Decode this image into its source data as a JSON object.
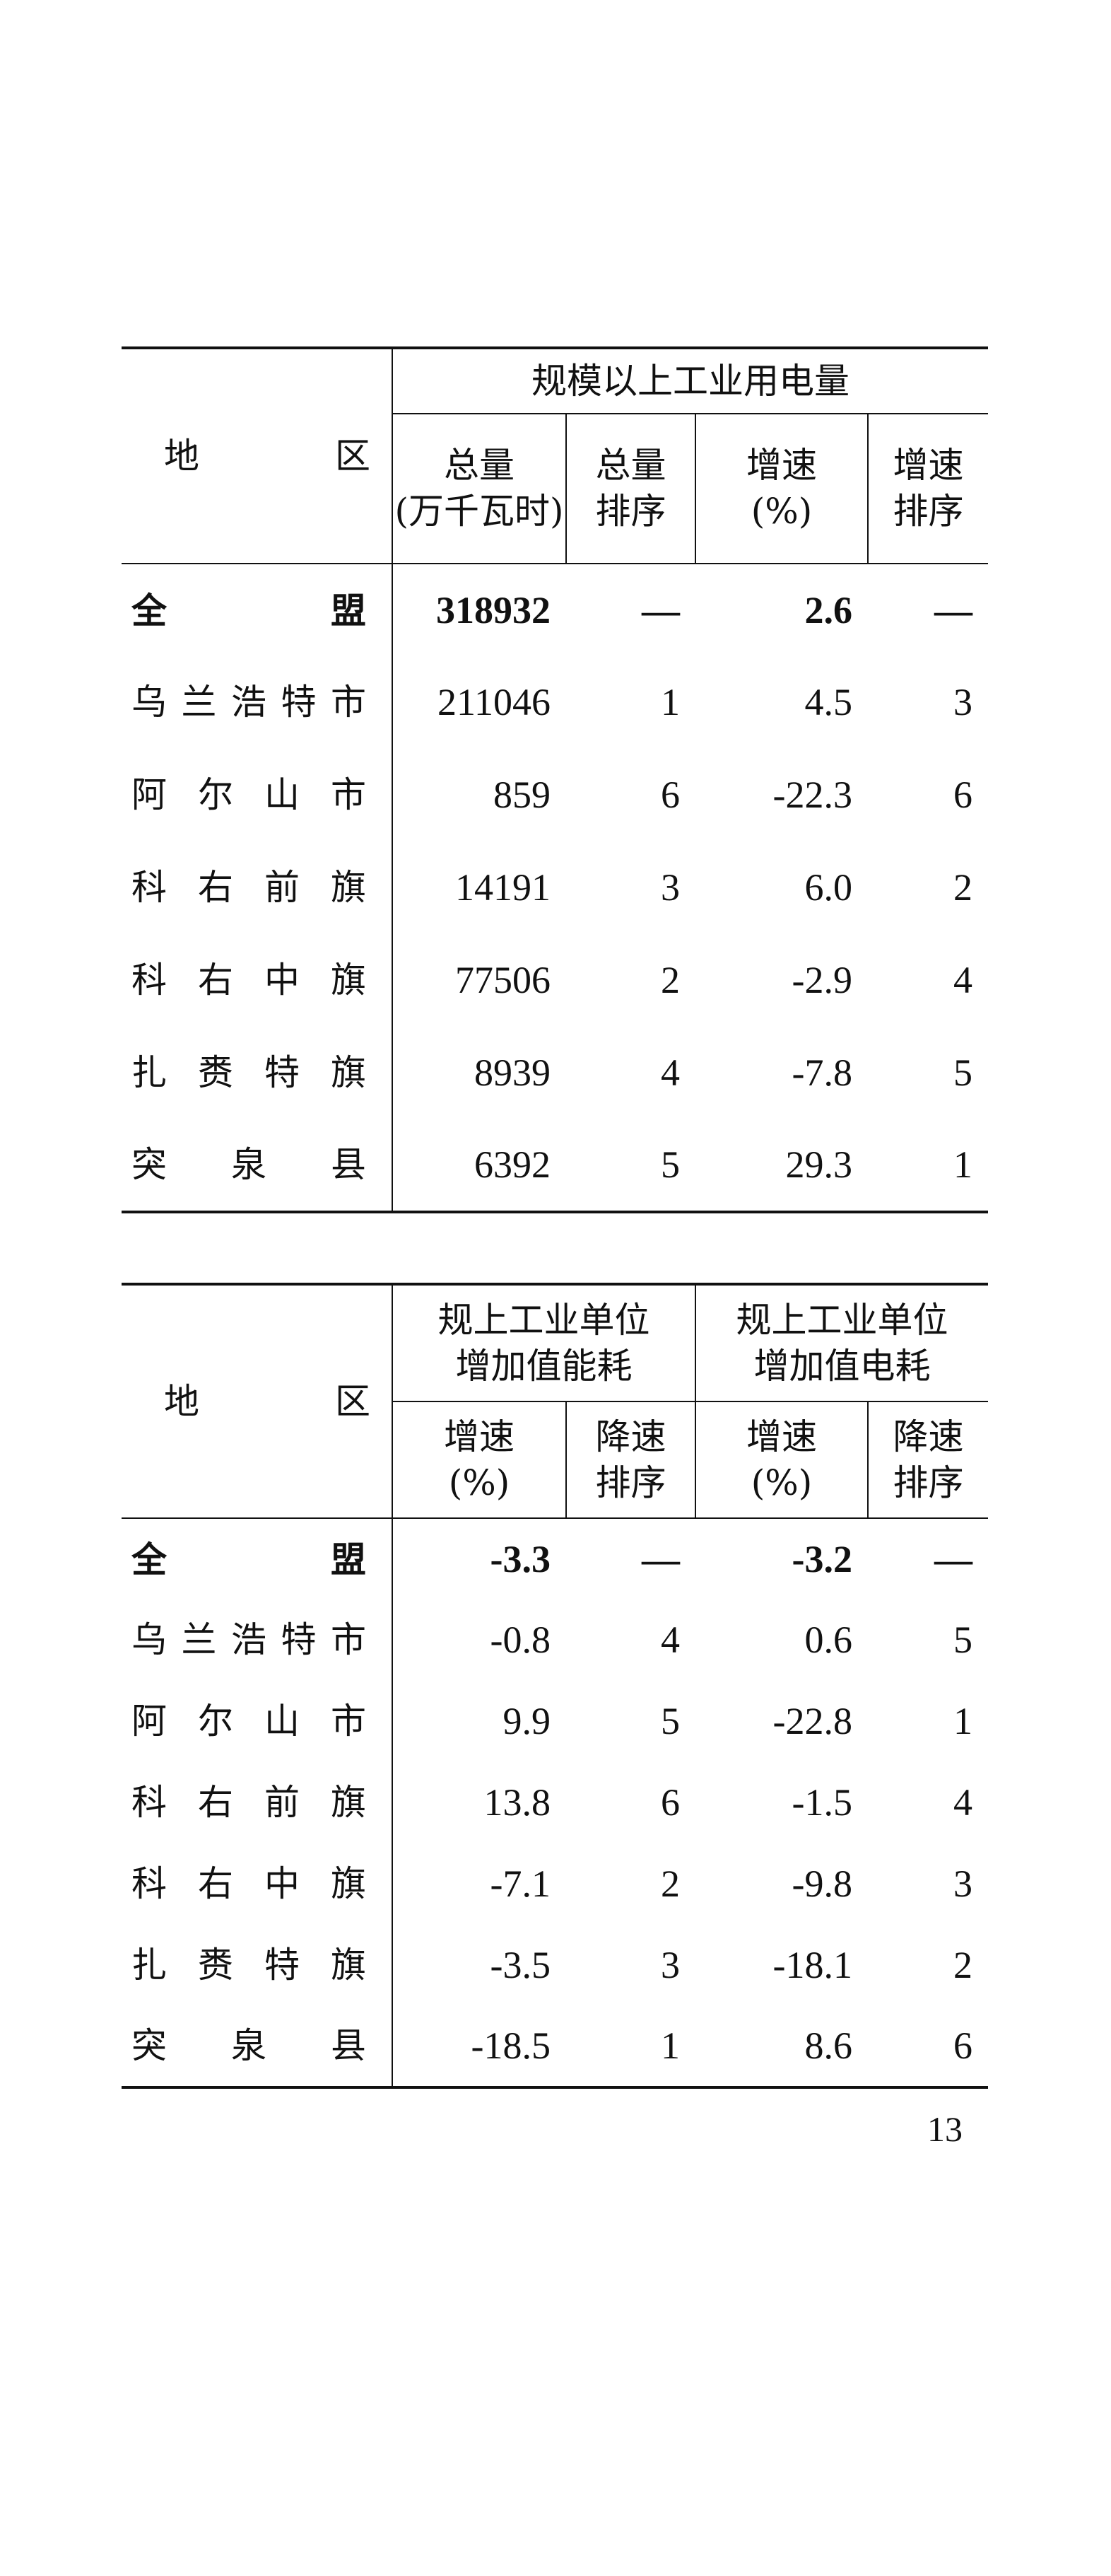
{
  "table1": {
    "region_header": [
      "地",
      "区"
    ],
    "group_header": "规模以上工业用电量",
    "columns": [
      [
        "总量",
        "(万千瓦时)"
      ],
      [
        "总量",
        "排序"
      ],
      [
        "增速",
        "(%)"
      ],
      [
        "增速",
        "排序"
      ]
    ],
    "rows": [
      {
        "region": [
          "全",
          "盟"
        ],
        "values": [
          "318932",
          "—",
          "2.6",
          "—"
        ],
        "bold": true
      },
      {
        "region": [
          "乌",
          "兰",
          "浩",
          "特",
          "市"
        ],
        "values": [
          "211046",
          "1",
          "4.5",
          "3"
        ]
      },
      {
        "region": [
          "阿",
          "尔",
          "山",
          "市"
        ],
        "values": [
          "859",
          "6",
          "-22.3",
          "6"
        ]
      },
      {
        "region": [
          "科",
          "右",
          "前",
          "旗"
        ],
        "values": [
          "14191",
          "3",
          "6.0",
          "2"
        ]
      },
      {
        "region": [
          "科",
          "右",
          "中",
          "旗"
        ],
        "values": [
          "77506",
          "2",
          "-2.9",
          "4"
        ]
      },
      {
        "region": [
          "扎",
          "赉",
          "特",
          "旗"
        ],
        "values": [
          "8939",
          "4",
          "-7.8",
          "5"
        ]
      },
      {
        "region": [
          "突",
          "泉",
          "县"
        ],
        "values": [
          "6392",
          "5",
          "29.3",
          "1"
        ]
      }
    ]
  },
  "table2": {
    "region_header": [
      "地",
      "区"
    ],
    "group_headers": [
      [
        "规上工业单位",
        "增加值能耗"
      ],
      [
        "规上工业单位",
        "增加值电耗"
      ]
    ],
    "columns": [
      [
        "增速",
        "(%)"
      ],
      [
        "降速",
        "排序"
      ],
      [
        "增速",
        "(%)"
      ],
      [
        "降速",
        "排序"
      ]
    ],
    "rows": [
      {
        "region": [
          "全",
          "盟"
        ],
        "values": [
          "-3.3",
          "—",
          "-3.2",
          "—"
        ],
        "bold": true
      },
      {
        "region": [
          "乌",
          "兰",
          "浩",
          "特",
          "市"
        ],
        "values": [
          "-0.8",
          "4",
          "0.6",
          "5"
        ]
      },
      {
        "region": [
          "阿",
          "尔",
          "山",
          "市"
        ],
        "values": [
          "9.9",
          "5",
          "-22.8",
          "1"
        ]
      },
      {
        "region": [
          "科",
          "右",
          "前",
          "旗"
        ],
        "values": [
          "13.8",
          "6",
          "-1.5",
          "4"
        ]
      },
      {
        "region": [
          "科",
          "右",
          "中",
          "旗"
        ],
        "values": [
          "-7.1",
          "2",
          "-9.8",
          "3"
        ]
      },
      {
        "region": [
          "扎",
          "赉",
          "特",
          "旗"
        ],
        "values": [
          "-3.5",
          "3",
          "-18.1",
          "2"
        ]
      },
      {
        "region": [
          "突",
          "泉",
          "县"
        ],
        "values": [
          "-18.5",
          "1",
          "8.6",
          "6"
        ]
      }
    ]
  },
  "page_number": "13"
}
